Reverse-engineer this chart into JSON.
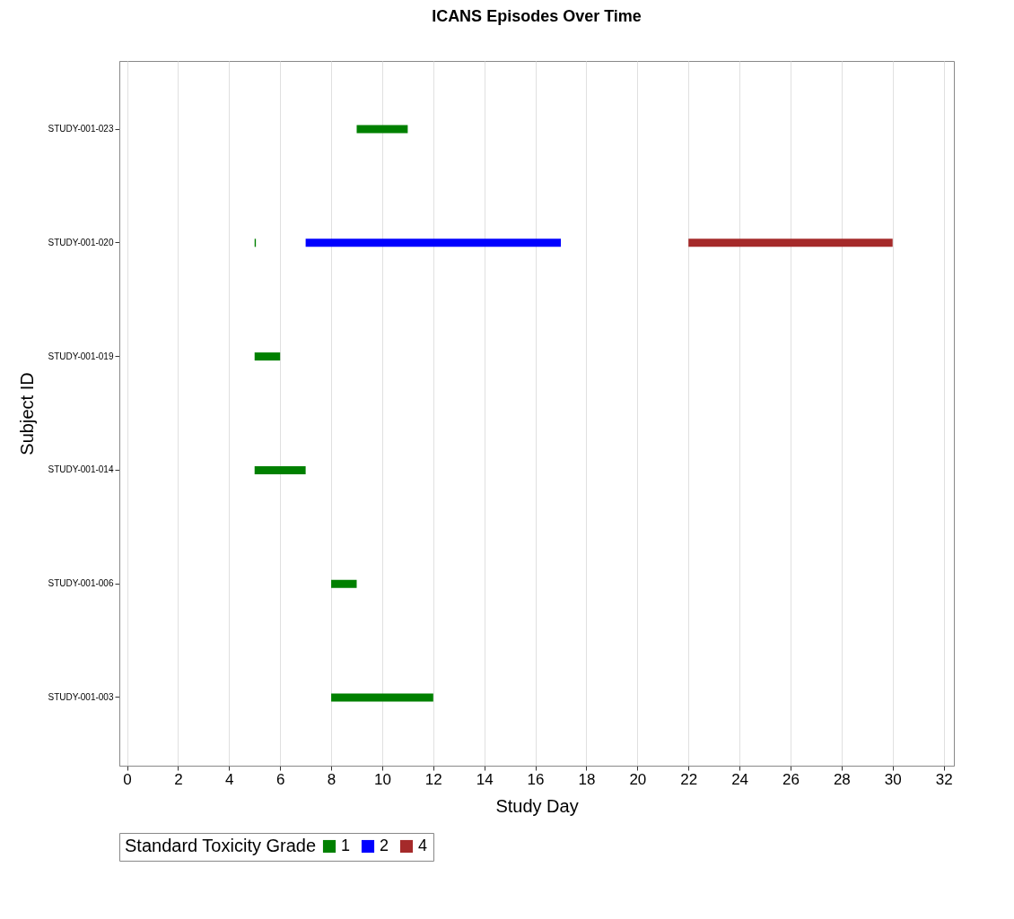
{
  "chart_data": {
    "type": "bar",
    "orientation": "horizontal",
    "title": "ICANS Episodes Over Time",
    "xlabel": "Study Day",
    "ylabel": "Subject ID",
    "legend_title": "Standard Toxicity Grade",
    "categories": [
      "STUDY-001-023",
      "STUDY-001-020",
      "STUDY-001-019",
      "STUDY-001-014",
      "STUDY-001-006",
      "STUDY-001-003"
    ],
    "series": [
      {
        "name": "1",
        "color": "#008000",
        "values": [
          2,
          0.05,
          1,
          2,
          1,
          4
        ],
        "base": [
          9,
          5,
          5,
          5,
          8,
          8
        ]
      },
      {
        "name": "2",
        "color": "#0000ff",
        "values": [
          null,
          10,
          null,
          null,
          null,
          null
        ],
        "base": [
          null,
          7,
          null,
          null,
          null,
          null
        ]
      },
      {
        "name": "4",
        "color": "#a52a2a",
        "values": [
          null,
          8,
          null,
          null,
          null,
          null
        ],
        "base": [
          null,
          22,
          null,
          null,
          null,
          null
        ]
      }
    ],
    "xlim": [
      -0.3,
      32.4
    ],
    "xticks": [
      0,
      2,
      4,
      6,
      8,
      10,
      12,
      14,
      16,
      18,
      20,
      22,
      24,
      26,
      28,
      30,
      32
    ],
    "grid": "x",
    "legend": "bottom"
  }
}
